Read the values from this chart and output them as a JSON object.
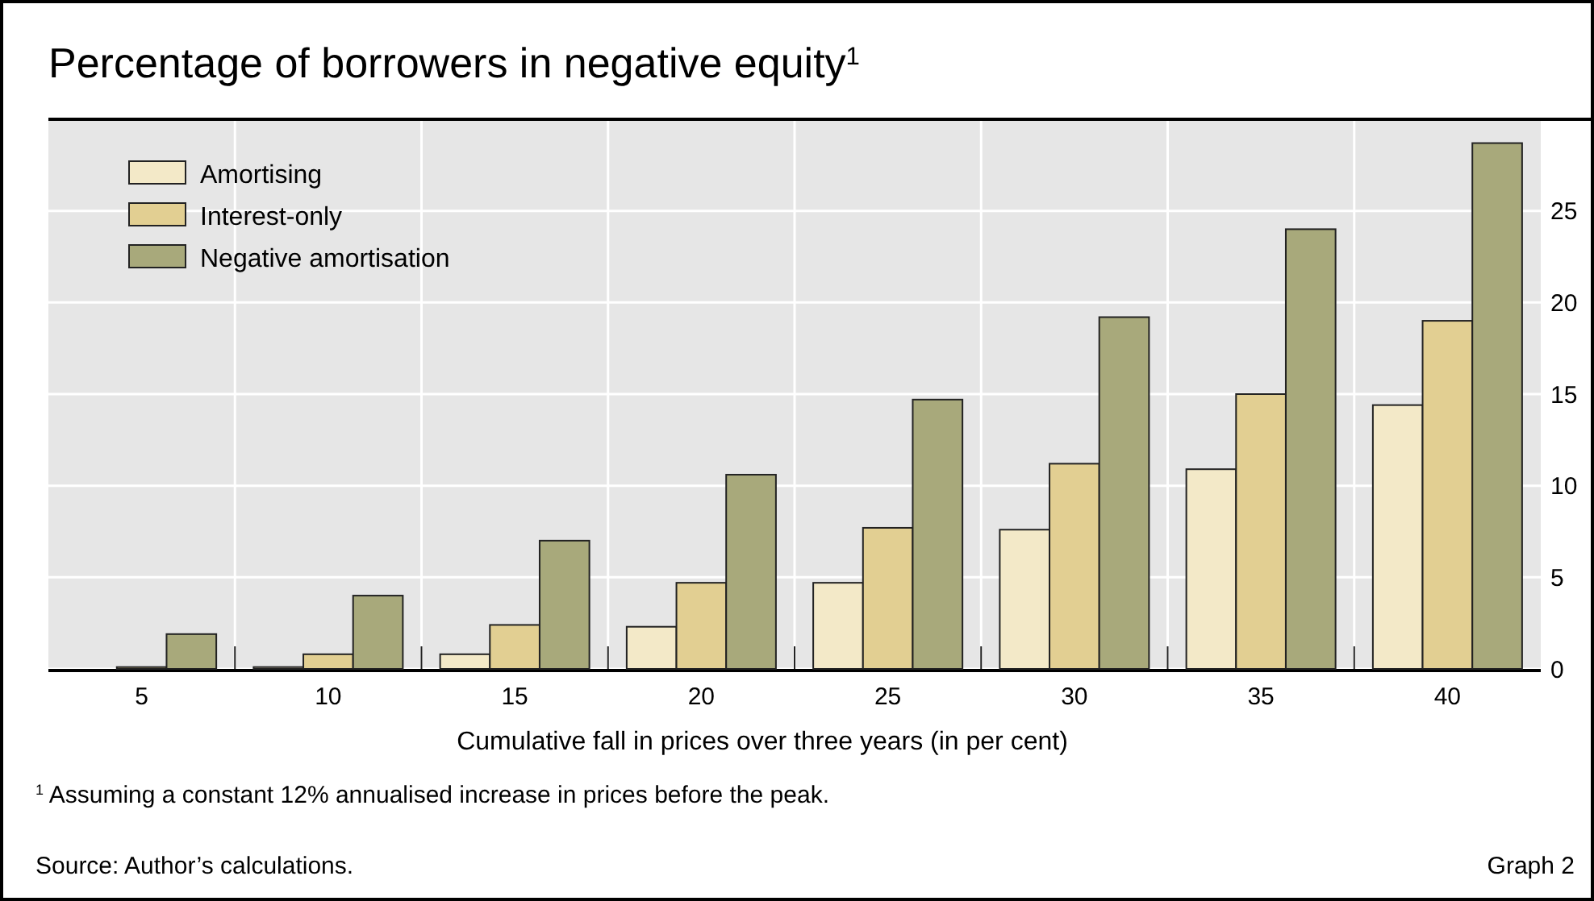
{
  "chart_data": {
    "type": "bar",
    "title": "Percentage of borrowers in negative equity$^{1}$",
    "xlabel": "Cumulative fall in prices over three years (in per cent)",
    "categories": [
      "5",
      "10",
      "15",
      "20",
      "25",
      "30",
      "35",
      "40"
    ],
    "series": [
      {
        "name": "Amortising",
        "color": "#f3e9c8",
        "values": [
          0,
          0.1,
          0.8,
          2.3,
          4.7,
          7.6,
          10.9,
          14.4
        ]
      },
      {
        "name": "Interest-only",
        "color": "#e2cf92",
        "values": [
          0.1,
          0.8,
          2.4,
          4.7,
          7.7,
          11.2,
          15.0,
          19.0
        ]
      },
      {
        "name": "Negative amortisation",
        "color": "#a8a97b",
        "values": [
          1.9,
          4.0,
          7.0,
          10.6,
          14.7,
          19.2,
          24.0,
          28.7
        ]
      }
    ],
    "ylim": [
      0,
      30
    ],
    "yticks": [
      0,
      5,
      10,
      15,
      20,
      25
    ],
    "grid": true,
    "legend": "top left",
    "annotations": [
      "$^{1}$ Assuming a constant 12% annualised increase in prices before the peak.",
      "Source: Author’s calculations.",
      "Graph 2"
    ]
  }
}
